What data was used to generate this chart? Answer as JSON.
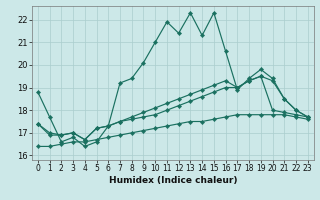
{
  "xlabel": "Humidex (Indice chaleur)",
  "background_color": "#cce8e8",
  "grid_color": "#aacece",
  "line_color": "#1a7060",
  "xlim": [
    -0.5,
    23.5
  ],
  "ylim": [
    15.8,
    22.6
  ],
  "yticks": [
    16,
    17,
    18,
    19,
    20,
    21,
    22
  ],
  "xticks": [
    0,
    1,
    2,
    3,
    4,
    5,
    6,
    7,
    8,
    9,
    10,
    11,
    12,
    13,
    14,
    15,
    16,
    17,
    18,
    19,
    20,
    21,
    22,
    23
  ],
  "lines": [
    [
      18.8,
      17.7,
      16.6,
      16.8,
      16.4,
      16.6,
      17.3,
      19.2,
      19.4,
      20.1,
      21.0,
      21.9,
      21.4,
      22.3,
      21.3,
      22.3,
      20.6,
      18.9,
      19.4,
      19.8,
      19.4,
      18.5,
      18.0,
      17.7
    ],
    [
      17.4,
      17.0,
      16.9,
      17.0,
      16.7,
      17.2,
      17.3,
      17.5,
      17.6,
      17.7,
      17.8,
      18.0,
      18.2,
      18.4,
      18.6,
      18.8,
      19.0,
      19.0,
      19.3,
      19.5,
      18.0,
      17.9,
      17.8,
      17.7
    ],
    [
      17.4,
      16.9,
      16.9,
      17.0,
      16.7,
      17.2,
      17.3,
      17.5,
      17.7,
      17.9,
      18.1,
      18.3,
      18.5,
      18.7,
      18.9,
      19.1,
      19.3,
      19.0,
      19.3,
      19.5,
      19.3,
      18.5,
      18.0,
      17.7
    ],
    [
      16.4,
      16.4,
      16.5,
      16.6,
      16.6,
      16.7,
      16.8,
      16.9,
      17.0,
      17.1,
      17.2,
      17.3,
      17.4,
      17.5,
      17.5,
      17.6,
      17.7,
      17.8,
      17.8,
      17.8,
      17.8,
      17.8,
      17.7,
      17.6
    ]
  ],
  "marker": "D",
  "markersize": 2.2,
  "linewidth": 0.85
}
